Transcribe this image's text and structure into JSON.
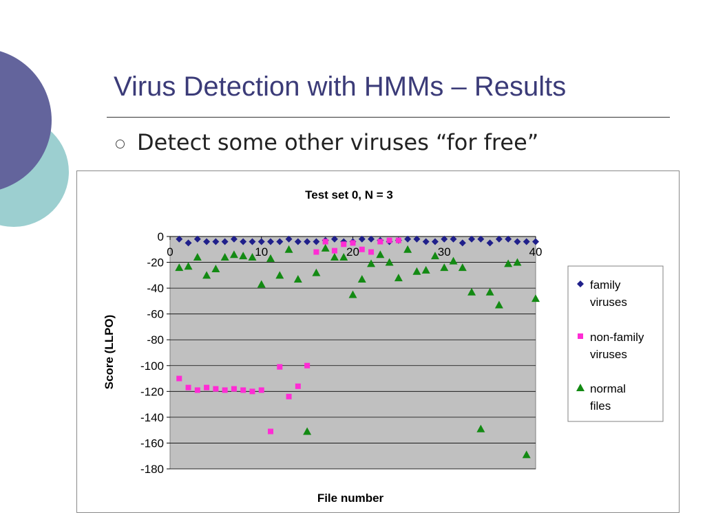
{
  "slide": {
    "title": "Virus Detection with HMMs – Results",
    "bullet": "Detect some other viruses “for free”"
  },
  "colors": {
    "title": "#3b3b78",
    "plot_bg": "#c0c0c0",
    "family": "#1f1f8a",
    "non_family": "#ff2cd4",
    "normal": "#138a13",
    "deco_teal": "#9ccfd0",
    "deco_purple": "#63649c"
  },
  "chart_data": {
    "type": "scatter",
    "title": "Test set 0, N = 3",
    "xlabel": "File number",
    "ylabel": "Score (LLPO)",
    "xlim": [
      0,
      40
    ],
    "ylim": [
      -180,
      0
    ],
    "xticks": [
      0,
      10,
      20,
      30,
      40
    ],
    "yticks": [
      0,
      -20,
      -40,
      -60,
      -80,
      -100,
      -120,
      -140,
      -160,
      -180
    ],
    "grid": true,
    "legend_position": "right",
    "series": [
      {
        "name": "family viruses",
        "marker": "diamond",
        "color": "#1f1f8a",
        "points": [
          [
            1,
            -2
          ],
          [
            2,
            -5
          ],
          [
            3,
            -2
          ],
          [
            4,
            -4
          ],
          [
            5,
            -4
          ],
          [
            6,
            -4
          ],
          [
            7,
            -2
          ],
          [
            8,
            -4
          ],
          [
            9,
            -4
          ],
          [
            10,
            -4
          ],
          [
            11,
            -4
          ],
          [
            12,
            -4
          ],
          [
            13,
            -2
          ],
          [
            14,
            -4
          ],
          [
            15,
            -4
          ],
          [
            16,
            -4
          ],
          [
            17,
            -3
          ],
          [
            18,
            -2
          ],
          [
            19,
            -4
          ],
          [
            20,
            -4
          ],
          [
            21,
            -2
          ],
          [
            22,
            -2
          ],
          [
            23,
            -3
          ],
          [
            24,
            -4
          ],
          [
            25,
            -3
          ],
          [
            26,
            -2
          ],
          [
            27,
            -2
          ],
          [
            28,
            -4
          ],
          [
            29,
            -4
          ],
          [
            30,
            -2
          ],
          [
            31,
            -2
          ],
          [
            32,
            -5
          ],
          [
            33,
            -2
          ],
          [
            34,
            -2
          ],
          [
            35,
            -5
          ],
          [
            36,
            -2
          ],
          [
            37,
            -2
          ],
          [
            38,
            -4
          ],
          [
            39,
            -4
          ],
          [
            40,
            -4
          ]
        ]
      },
      {
        "name": "non-family viruses",
        "marker": "square",
        "color": "#ff2cd4",
        "points": [
          [
            1,
            -110
          ],
          [
            2,
            -117
          ],
          [
            3,
            -119
          ],
          [
            4,
            -117
          ],
          [
            5,
            -118
          ],
          [
            6,
            -119
          ],
          [
            7,
            -118
          ],
          [
            8,
            -119
          ],
          [
            9,
            -120
          ],
          [
            10,
            -119
          ],
          [
            11,
            -151
          ],
          [
            12,
            -101
          ],
          [
            13,
            -124
          ],
          [
            14,
            -116
          ],
          [
            15,
            -100
          ],
          [
            16,
            -12
          ],
          [
            17,
            -4
          ],
          [
            18,
            -11
          ],
          [
            19,
            -6
          ],
          [
            20,
            -5
          ],
          [
            21,
            -10
          ],
          [
            22,
            -12
          ],
          [
            23,
            -4
          ],
          [
            24,
            -3
          ],
          [
            25,
            -3
          ]
        ]
      },
      {
        "name": "normal files",
        "marker": "triangle",
        "color": "#138a13",
        "points": [
          [
            1,
            -24
          ],
          [
            2,
            -23
          ],
          [
            3,
            -16
          ],
          [
            4,
            -30
          ],
          [
            5,
            -25
          ],
          [
            6,
            -16
          ],
          [
            7,
            -14
          ],
          [
            8,
            -15
          ],
          [
            9,
            -16
          ],
          [
            10,
            -37
          ],
          [
            11,
            -17
          ],
          [
            12,
            -30
          ],
          [
            13,
            -10
          ],
          [
            14,
            -33
          ],
          [
            15,
            -151
          ],
          [
            16,
            -28
          ],
          [
            17,
            -9
          ],
          [
            18,
            -16
          ],
          [
            19,
            -16
          ],
          [
            20,
            -45
          ],
          [
            21,
            -33
          ],
          [
            22,
            -21
          ],
          [
            23,
            -14
          ],
          [
            24,
            -20
          ],
          [
            25,
            -32
          ],
          [
            26,
            -10
          ],
          [
            27,
            -27
          ],
          [
            28,
            -26
          ],
          [
            29,
            -15
          ],
          [
            30,
            -24
          ],
          [
            31,
            -19
          ],
          [
            32,
            -24
          ],
          [
            33,
            -43
          ],
          [
            34,
            -149
          ],
          [
            35,
            -43
          ],
          [
            36,
            -53
          ],
          [
            37,
            -21
          ],
          [
            38,
            -20
          ],
          [
            39,
            -169
          ],
          [
            40,
            -48
          ]
        ]
      }
    ]
  }
}
